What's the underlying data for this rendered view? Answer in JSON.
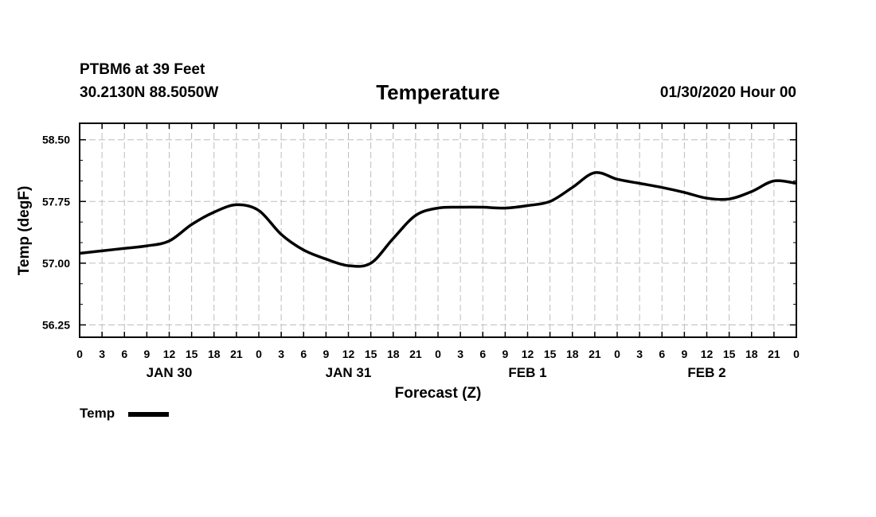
{
  "header": {
    "station": "PTBM6 at 39 Feet",
    "coords": "30.2130N 88.5050W",
    "title": "Temperature",
    "datetime": "01/30/2020 Hour 00"
  },
  "legend": {
    "label": "Temp"
  },
  "chart_data": {
    "type": "line",
    "title": "Temperature",
    "xlabel": "Forecast (Z)",
    "ylabel": "Temp (degF)",
    "xlim": [
      0,
      96
    ],
    "ylim": [
      56.1,
      58.7
    ],
    "yticks": [
      56.25,
      57.0,
      57.75,
      58.5
    ],
    "ytick_labels": [
      "56.25",
      "57.00",
      "57.75",
      "58.50"
    ],
    "xtick_hours": [
      0,
      3,
      6,
      9,
      12,
      15,
      18,
      21,
      24,
      27,
      30,
      33,
      36,
      39,
      42,
      45,
      48,
      51,
      54,
      57,
      60,
      63,
      66,
      69,
      72,
      75,
      78,
      81,
      84,
      87,
      90,
      93,
      96
    ],
    "xtick_labels": [
      "0",
      "3",
      "6",
      "9",
      "12",
      "15",
      "18",
      "21",
      "0",
      "3",
      "6",
      "9",
      "12",
      "15",
      "18",
      "21",
      "0",
      "3",
      "6",
      "9",
      "12",
      "15",
      "18",
      "21",
      "0",
      "3",
      "6",
      "9",
      "12",
      "15",
      "18",
      "21",
      "0"
    ],
    "date_labels": [
      {
        "label": "JAN 30",
        "hour": 12
      },
      {
        "label": "JAN 31",
        "hour": 36
      },
      {
        "label": "FEB 1",
        "hour": 60
      },
      {
        "label": "FEB 2",
        "hour": 84
      }
    ],
    "grid": true,
    "legend_position": "bottom-left",
    "series": [
      {
        "name": "Temp",
        "x": [
          0,
          3,
          6,
          9,
          12,
          15,
          18,
          21,
          24,
          27,
          30,
          33,
          36,
          39,
          42,
          45,
          48,
          51,
          54,
          57,
          60,
          63,
          66,
          69,
          72,
          75,
          78,
          81,
          84,
          87,
          90,
          93,
          96
        ],
        "values": [
          57.12,
          57.15,
          57.18,
          57.21,
          57.27,
          57.47,
          57.62,
          57.71,
          57.64,
          57.35,
          57.16,
          57.05,
          56.97,
          57.0,
          57.3,
          57.58,
          57.67,
          57.68,
          57.68,
          57.67,
          57.7,
          57.75,
          57.92,
          58.1,
          58.02,
          57.97,
          57.92,
          57.86,
          57.79,
          57.78,
          57.87,
          58.0,
          57.97
        ]
      }
    ]
  }
}
